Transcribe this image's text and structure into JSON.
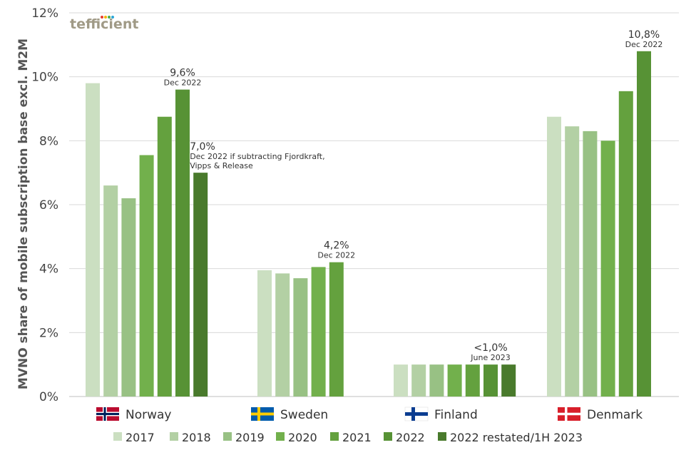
{
  "logo": {
    "text": "tefficient",
    "dot_colors": [
      "#e63a2e",
      "#f2b400",
      "#4caf50",
      "#2aa6d6"
    ]
  },
  "chart_data": {
    "type": "bar",
    "ylabel": "MVNO share of mobile subscription base excl. M2M",
    "xlabel": "",
    "ylim": [
      0,
      12
    ],
    "yticks": [
      0,
      2,
      4,
      6,
      8,
      10,
      12
    ],
    "ytick_labels": [
      "0%",
      "2%",
      "4%",
      "6%",
      "8%",
      "10%",
      "12%"
    ],
    "grid": true,
    "legend_position": "bottom",
    "series": [
      {
        "name": "2017",
        "color": "#cbdfc1",
        "values": [
          9.8,
          3.95,
          1.0,
          8.75
        ]
      },
      {
        "name": "2018",
        "color": "#b3d0a4",
        "values": [
          6.6,
          3.85,
          1.0,
          8.45
        ]
      },
      {
        "name": "2019",
        "color": "#98c184",
        "values": [
          6.2,
          3.7,
          1.0,
          8.3
        ]
      },
      {
        "name": "2020",
        "color": "#72b04c",
        "values": [
          7.55,
          4.05,
          1.0,
          8.0
        ]
      },
      {
        "name": "2021",
        "color": "#64a13e",
        "values": [
          8.75,
          4.2,
          1.0,
          9.55
        ]
      },
      {
        "name": "2022",
        "color": "#579235",
        "values": [
          9.6,
          null,
          1.0,
          10.8
        ]
      },
      {
        "name": "2022 restated/1H 2023",
        "color": "#497a2c",
        "values": [
          7.0,
          null,
          1.0,
          null
        ]
      }
    ],
    "categories": [
      {
        "name": "Norway",
        "flag": "norway-flag"
      },
      {
        "name": "Sweden",
        "flag": "sweden-flag"
      },
      {
        "name": "Finland",
        "flag": "finland-flag"
      },
      {
        "name": "Denmark",
        "flag": "denmark-flag"
      }
    ],
    "annotations": [
      {
        "category": 0,
        "series": 5,
        "main": "9,6%",
        "sub": [
          "Dec 2022"
        ],
        "align": "middle"
      },
      {
        "category": 0,
        "series": 6,
        "main": "7,0%",
        "sub": [
          "Dec 2022 if subtracting Fjordkraft,",
          "Vipps & Release"
        ],
        "align": "start"
      },
      {
        "category": 1,
        "series": 4,
        "main": "4,2%",
        "sub": [
          "Dec 2022"
        ],
        "align": "middle"
      },
      {
        "category": 2,
        "series": 5,
        "main": "<1,0%",
        "sub": [
          "June 2023"
        ],
        "align": "middle"
      },
      {
        "category": 3,
        "series": 5,
        "main": "10,8%",
        "sub": [
          "Dec 2022"
        ],
        "align": "middle"
      }
    ]
  }
}
